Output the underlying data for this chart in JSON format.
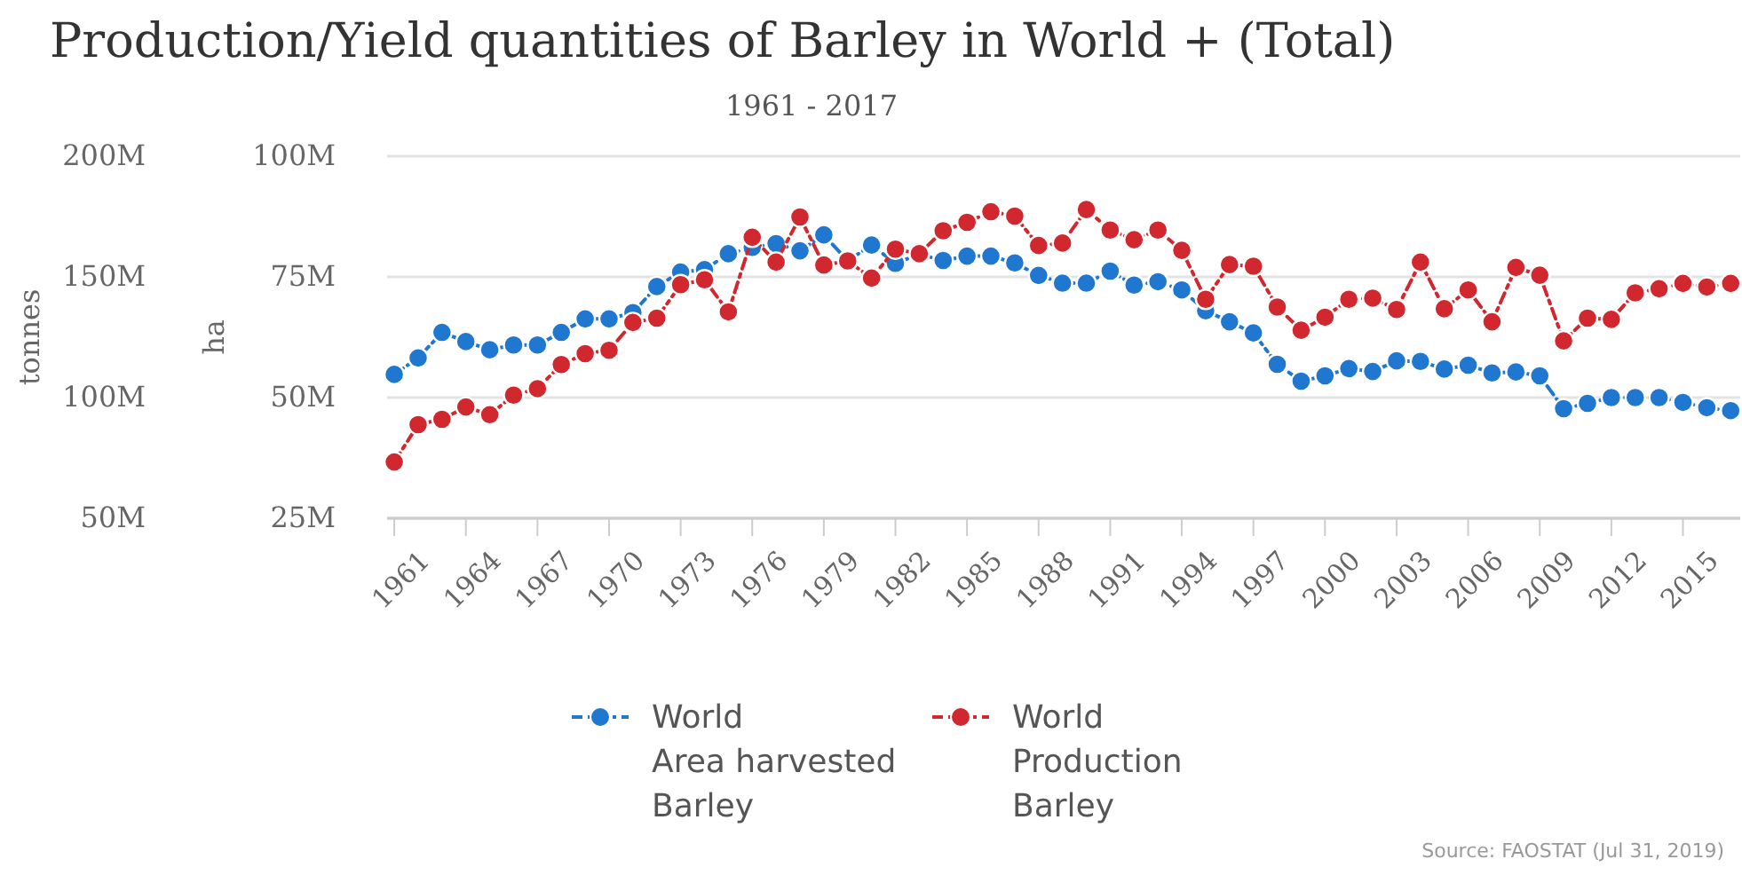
{
  "chart_data": {
    "type": "line",
    "title": "Production/Yield quantities of Barley in World + (Total)",
    "subtitle": "1961 - 2017",
    "ylabel": "tonnes",
    "y2label": "ha",
    "x": [
      1961,
      1962,
      1963,
      1964,
      1965,
      1966,
      1967,
      1968,
      1969,
      1970,
      1971,
      1972,
      1973,
      1974,
      1975,
      1976,
      1977,
      1978,
      1979,
      1980,
      1981,
      1982,
      1983,
      1984,
      1985,
      1986,
      1987,
      1988,
      1989,
      1990,
      1991,
      1992,
      1993,
      1994,
      1995,
      1996,
      1997,
      1998,
      1999,
      2000,
      2001,
      2002,
      2003,
      2004,
      2005,
      2006,
      2007,
      2008,
      2009,
      2010,
      2011,
      2012,
      2013,
      2014,
      2015,
      2016,
      2017
    ],
    "series": [
      {
        "name": "World\nArea harvested\nBarley",
        "color": "#1f77d0",
        "axis": "y2",
        "values": [
          54.8,
          58.2,
          63.5,
          61.6,
          59.9,
          60.9,
          60.9,
          63.5,
          66.3,
          66.3,
          67.6,
          73.0,
          76.0,
          76.5,
          79.8,
          81.1,
          81.9,
          80.4,
          83.7,
          78.3,
          81.6,
          77.8,
          79.7,
          78.4,
          79.3,
          79.3,
          77.9,
          75.3,
          73.7,
          73.7,
          76.2,
          73.3,
          74.0,
          72.3,
          68.0,
          65.7,
          63.4,
          56.9,
          53.4,
          54.5,
          56.0,
          55.4,
          57.6,
          57.5,
          55.9,
          56.7,
          55.1,
          55.3,
          54.5,
          47.7,
          48.8,
          50.0,
          50.0,
          50.0,
          49.0,
          47.9,
          47.3
        ]
      },
      {
        "name": "World\nProduction\nBarley",
        "color": "#d0282e",
        "values": [
          73.3,
          88.8,
          91.0,
          96.1,
          92.9,
          101.0,
          103.7,
          113.7,
          118.2,
          119.6,
          131.1,
          132.9,
          146.8,
          148.8,
          135.5,
          166.4,
          156.1,
          174.8,
          154.9,
          156.6,
          149.5,
          161.5,
          159.6,
          169.1,
          172.6,
          177.0,
          175.2,
          163.0,
          164.0,
          177.9,
          169.4,
          165.4,
          169.4,
          161.0,
          140.7,
          155.1,
          154.4,
          137.5,
          127.9,
          133.3,
          140.7,
          141.2,
          136.5,
          156.1,
          136.8,
          144.6,
          131.4,
          153.9,
          150.7,
          123.5,
          132.9,
          132.4,
          143.4,
          145.1,
          147.3,
          145.8,
          147.3
        ]
      }
    ],
    "xlim": [
      1960.7,
      2017.4
    ],
    "xticks": [
      1961,
      1964,
      1967,
      1970,
      1973,
      1976,
      1979,
      1982,
      1985,
      1988,
      1991,
      1994,
      1997,
      2000,
      2003,
      2006,
      2009,
      2012,
      2015
    ],
    "ylim": [
      50,
      200
    ],
    "yticks": [
      {
        "value": 50,
        "label": "50M"
      },
      {
        "value": 100,
        "label": "100M"
      },
      {
        "value": 150,
        "label": "150M"
      },
      {
        "value": 200,
        "label": "200M"
      }
    ],
    "y2lim": [
      25,
      100
    ],
    "y2ticks": [
      {
        "value": 25,
        "label": "25M"
      },
      {
        "value": 50,
        "label": "50M"
      },
      {
        "value": 75,
        "label": "75M"
      },
      {
        "value": 100,
        "label": "100M"
      }
    ],
    "grid": "y",
    "legend": "bottom",
    "marker": "circle",
    "line_style": "dashed",
    "annotations": [
      "Source: FAOSTAT (Jul 31, 2019)"
    ]
  }
}
